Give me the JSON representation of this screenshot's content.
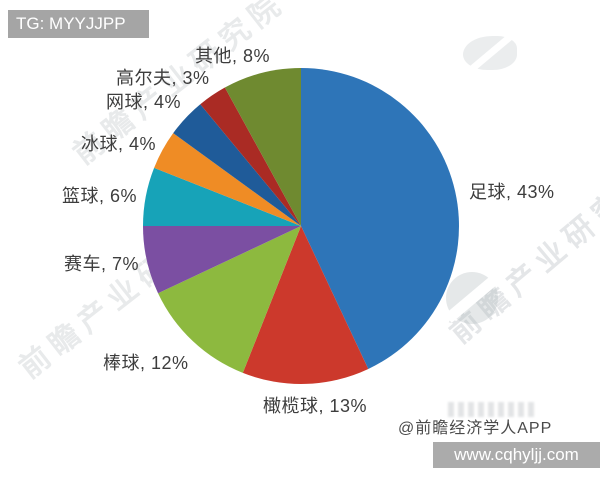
{
  "overlays": {
    "top_banner": "TG: MYYJJPP",
    "bottom_banner": "www.cqhyljj.com"
  },
  "credit": "@前瞻经济学人APP",
  "watermark": {
    "brand_text": "前瞻产业研究院",
    "logo": "circle-swoosh-logo"
  },
  "colors": {
    "banner_gray": "#a5a5a5",
    "label_text": "#3d3d3d",
    "credit_text": "#4a4a4a",
    "background": "#ffffff"
  },
  "chart_data": {
    "type": "pie",
    "title": "",
    "direction": "clockwise",
    "start_angle_deg": 0,
    "legend": "none",
    "label_format": "{label}, {value}%",
    "slices": [
      {
        "label": "足球",
        "value": 43,
        "color": "#2E75B8"
      },
      {
        "label": "橄榄球",
        "value": 13,
        "color": "#CC392C"
      },
      {
        "label": "棒球",
        "value": 12,
        "color": "#8DB93F"
      },
      {
        "label": "赛车",
        "value": 7,
        "color": "#7B4FA2"
      },
      {
        "label": "篮球",
        "value": 6,
        "color": "#17A3B8"
      },
      {
        "label": "冰球",
        "value": 4,
        "color": "#EF8C25"
      },
      {
        "label": "网球",
        "value": 4,
        "color": "#1F5B99"
      },
      {
        "label": "高尔夫",
        "value": 3,
        "color": "#AA2B24"
      },
      {
        "label": "其他",
        "value": 8,
        "color": "#6F8A30"
      }
    ]
  }
}
